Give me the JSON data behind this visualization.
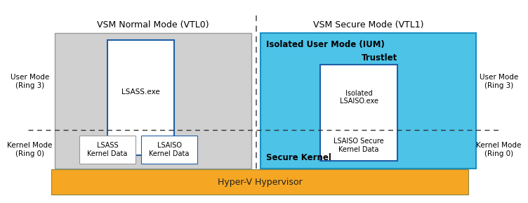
{
  "fig_width": 7.2,
  "fig_height": 2.69,
  "bg_color": "#ffffff",
  "hypervisor_color": "#F5A623",
  "hypervisor_border": "#888844",
  "hypervisor_text": "Hyper-V Hypervisor",
  "vtl0_bg": "#D0D0D0",
  "vtl0_border": "#999999",
  "vtl0_label": "VSM Normal Mode (VTL0)",
  "vtl1_bg": "#4DC3E8",
  "vtl1_border": "#1A90C0",
  "vtl1_label": "VSM Secure Mode (VTL1)",
  "ium_label": "Isolated User Mode (IUM)",
  "trustlet_label": "Trustlet",
  "secure_kernel_label": "Secure Kernel",
  "lsass_box_border": "#1F5FA6",
  "lsass_label": "LSASS.exe",
  "lsass_kd_label": "LSASS\nKernel Data",
  "lsaiso_kd_label": "LSAISO\nKernel Data",
  "isolated_lsaiso_label": "Isolated\nLSAISO.exe",
  "lsaiso_secure_kd_label": "LSAISO Secure\nKernel Data",
  "user_mode_left": "User Mode\n(Ring 3)",
  "kernel_mode_left": "Kernel Mode\n(Ring 0)",
  "user_mode_right": "User Mode\n(Ring 3)",
  "kernel_mode_right": "Kernel Mode\n(Ring 0)",
  "dash_color": "#333333",
  "center_divider_color": "#555555"
}
